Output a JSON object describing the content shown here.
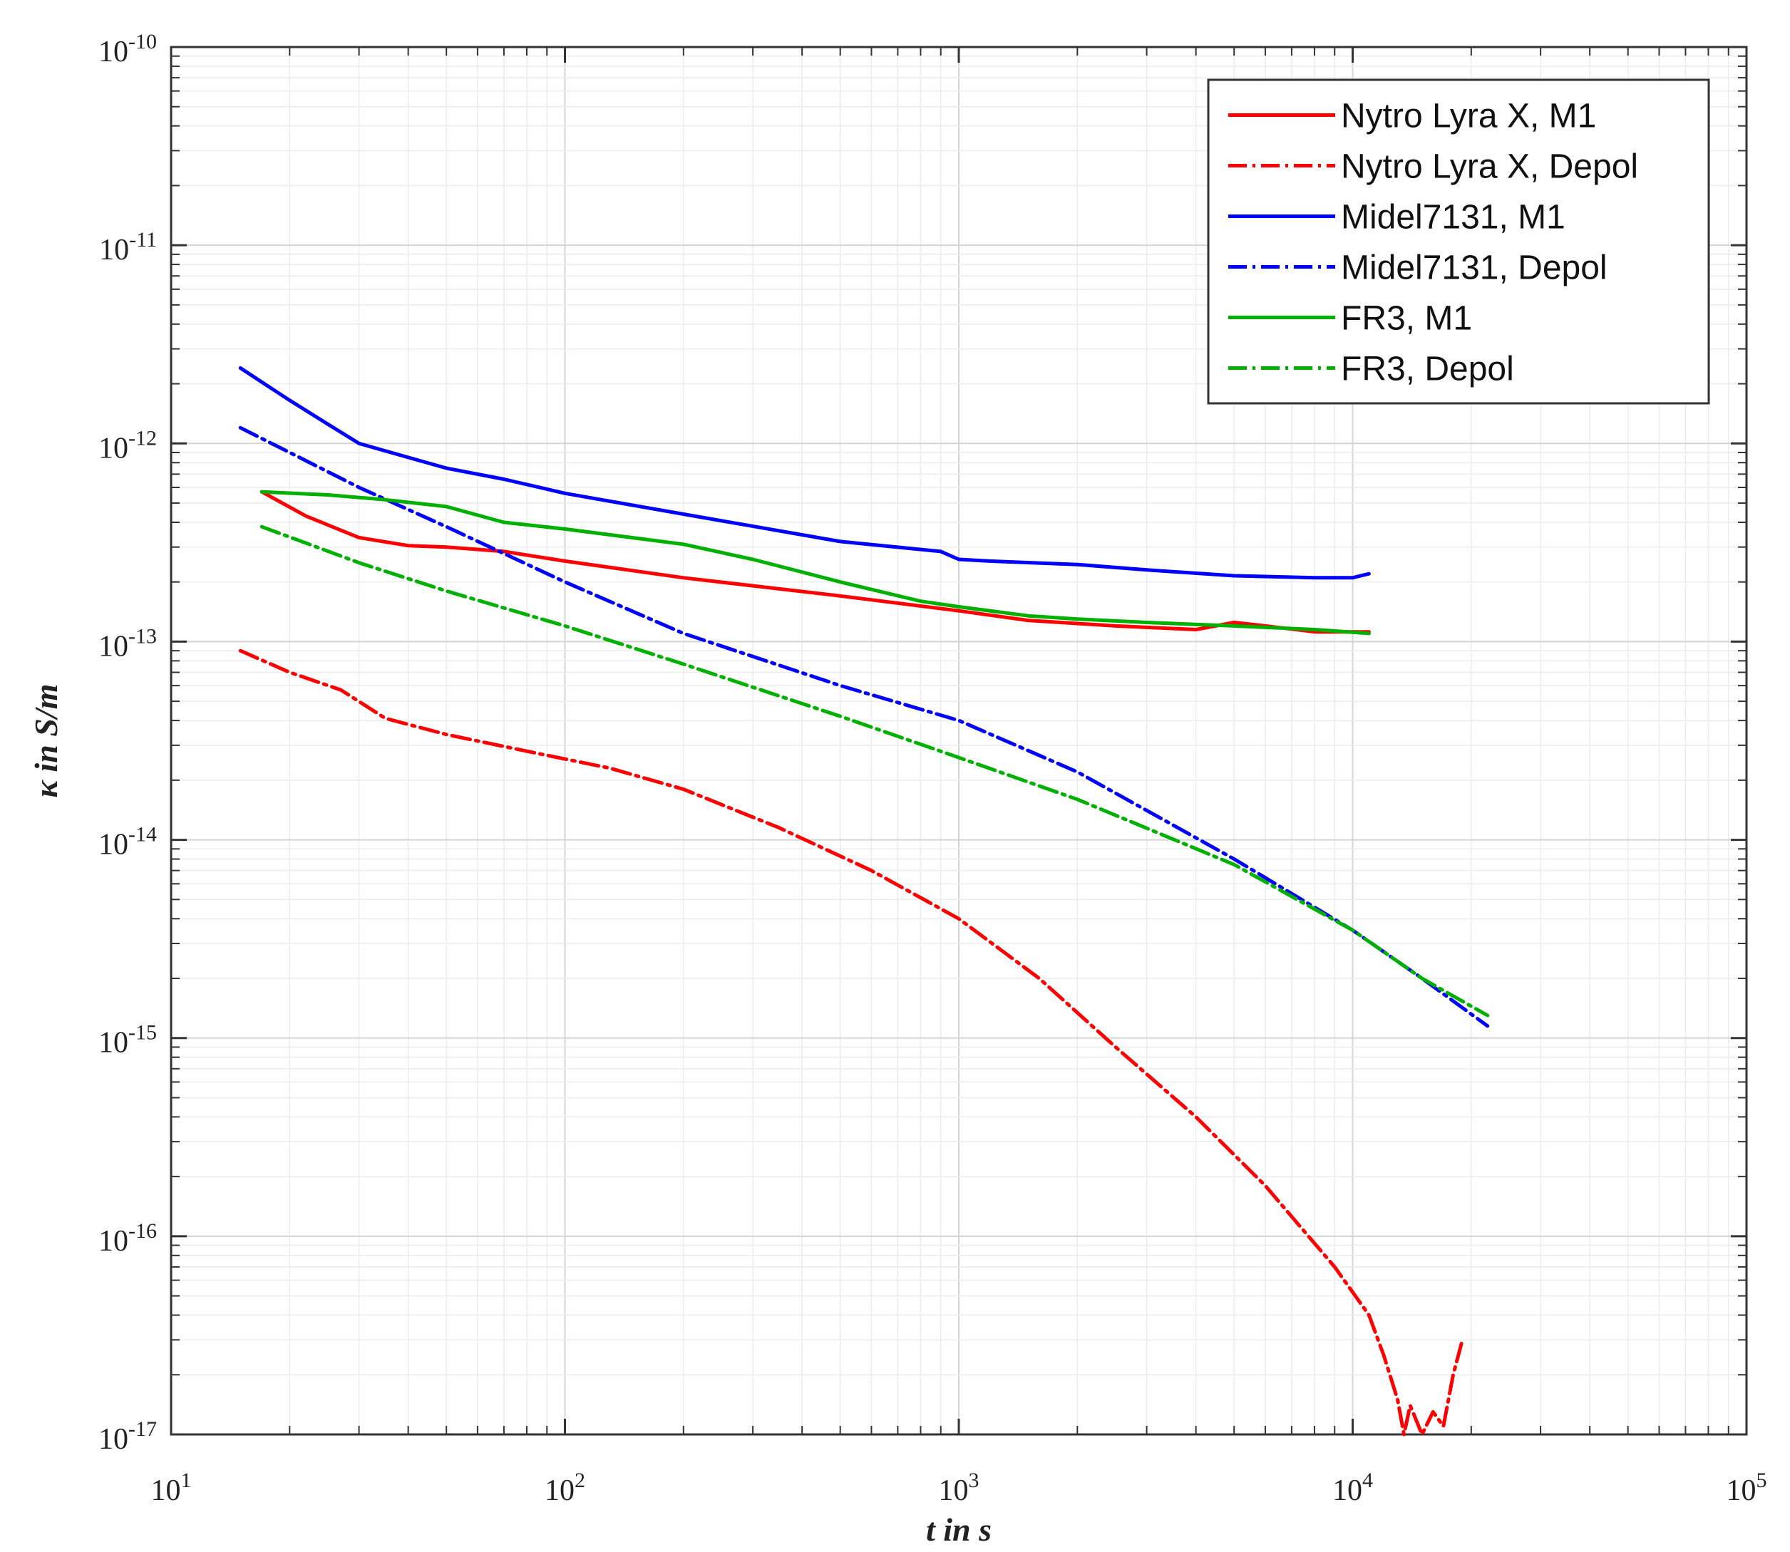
{
  "chart_data": {
    "type": "line",
    "xlabel": "t in s",
    "ylabel": "κ in S/m",
    "xscale": "log",
    "yscale": "log",
    "xlim": [
      10,
      100000
    ],
    "ylim": [
      1e-17,
      1e-10
    ],
    "grid": true,
    "legend_position": "top-right",
    "x_ticks": [
      {
        "value": 10,
        "base": "10",
        "exp": "1"
      },
      {
        "value": 100,
        "base": "10",
        "exp": "2"
      },
      {
        "value": 1000,
        "base": "10",
        "exp": "3"
      },
      {
        "value": 10000,
        "base": "10",
        "exp": "4"
      },
      {
        "value": 100000,
        "base": "10",
        "exp": "5"
      }
    ],
    "y_ticks": [
      {
        "value": 1e-10,
        "base": "10",
        "exp": "-10"
      },
      {
        "value": 1e-11,
        "base": "10",
        "exp": "-11"
      },
      {
        "value": 1e-12,
        "base": "10",
        "exp": "-12"
      },
      {
        "value": 1e-13,
        "base": "10",
        "exp": "-13"
      },
      {
        "value": 1e-14,
        "base": "10",
        "exp": "-14"
      },
      {
        "value": 1e-15,
        "base": "10",
        "exp": "-15"
      },
      {
        "value": 1e-16,
        "base": "10",
        "exp": "-16"
      },
      {
        "value": 1e-17,
        "base": "10",
        "exp": "-17"
      }
    ],
    "series": [
      {
        "name": "Nytro Lyra X, M1",
        "color": "#ff0000",
        "style": "solid",
        "x": [
          17,
          22,
          30,
          40,
          50,
          70,
          100,
          200,
          500,
          1000,
          1500,
          2500,
          4000,
          5000,
          6000,
          8000,
          11000
        ],
        "y": [
          5.7e-13,
          4.3e-13,
          3.35e-13,
          3.05e-13,
          3e-13,
          2.85e-13,
          2.55e-13,
          2.1e-13,
          1.7e-13,
          1.43e-13,
          1.28e-13,
          1.2e-13,
          1.15e-13,
          1.25e-13,
          1.2e-13,
          1.12e-13,
          1.12e-13
        ]
      },
      {
        "name": "Nytro Lyra X, Depol",
        "color": "#ff0000",
        "style": "dashdot",
        "x": [
          15,
          20,
          27,
          35,
          50,
          80,
          130,
          200,
          350,
          600,
          1000,
          1600,
          2500,
          4000,
          6000,
          9000,
          11000,
          12000,
          13000,
          13500,
          14000,
          15000,
          16000,
          17000,
          18000,
          19000
        ],
        "y": [
          9e-14,
          7e-14,
          5.7e-14,
          4.1e-14,
          3.4e-14,
          2.8e-14,
          2.3e-14,
          1.8e-14,
          1.15e-14,
          7e-15,
          4e-15,
          2e-15,
          9e-16,
          4e-16,
          1.8e-16,
          7e-17,
          4e-17,
          2.5e-17,
          1.5e-17,
          1e-17,
          1.4e-17,
          1e-17,
          1.3e-17,
          1.1e-17,
          2e-17,
          3e-17
        ]
      },
      {
        "name": "Midel7131, M1",
        "color": "#0000ff",
        "style": "solid",
        "x": [
          15,
          20,
          25,
          30,
          40,
          50,
          70,
          100,
          200,
          500,
          900,
          1000,
          1200,
          2000,
          3000,
          5000,
          8000,
          10000,
          11000
        ],
        "y": [
          2.4e-12,
          1.65e-12,
          1.25e-12,
          1e-12,
          8.5e-13,
          7.5e-13,
          6.6e-13,
          5.6e-13,
          4.4e-13,
          3.2e-13,
          2.85e-13,
          2.6e-13,
          2.55e-13,
          2.45e-13,
          2.3e-13,
          2.15e-13,
          2.1e-13,
          2.1e-13,
          2.2e-13
        ]
      },
      {
        "name": "Midel7131, Depol",
        "color": "#0000ff",
        "style": "dashdot",
        "x": [
          15,
          20,
          30,
          50,
          100,
          200,
          500,
          1000,
          2000,
          5000,
          10000,
          15000,
          22000
        ],
        "y": [
          1.2e-12,
          9e-13,
          6e-13,
          3.8e-13,
          2e-13,
          1.1e-13,
          6e-14,
          4e-14,
          2.2e-14,
          8e-15,
          3.5e-15,
          2e-15,
          1.15e-15
        ]
      },
      {
        "name": "FR3, M1",
        "color": "#00b000",
        "style": "solid",
        "x": [
          17,
          25,
          35,
          50,
          70,
          100,
          200,
          300,
          500,
          800,
          1000,
          1500,
          2000,
          3000,
          5000,
          8000,
          11000
        ],
        "y": [
          5.7e-13,
          5.5e-13,
          5.2e-13,
          4.8e-13,
          4e-13,
          3.7e-13,
          3.1e-13,
          2.6e-13,
          2e-13,
          1.6e-13,
          1.5e-13,
          1.35e-13,
          1.3e-13,
          1.25e-13,
          1.2e-13,
          1.15e-13,
          1.1e-13
        ]
      },
      {
        "name": "FR3, Depol",
        "color": "#00b000",
        "style": "dashdot",
        "x": [
          17,
          30,
          50,
          100,
          200,
          500,
          1000,
          2000,
          5000,
          10000,
          15000,
          22000
        ],
        "y": [
          3.8e-13,
          2.5e-13,
          1.8e-13,
          1.2e-13,
          7.7e-14,
          4.2e-14,
          2.6e-14,
          1.6e-14,
          7.5e-15,
          3.5e-15,
          2e-15,
          1.3e-15
        ]
      }
    ]
  }
}
